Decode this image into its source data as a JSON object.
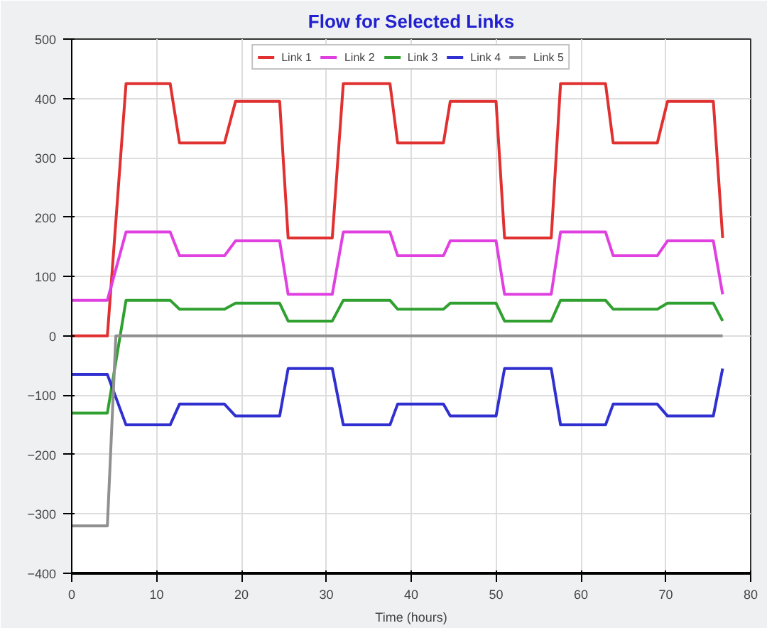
{
  "chart_data": {
    "type": "line",
    "title": "Flow for Selected Links",
    "xlabel": "Time (hours)",
    "x": [
      0,
      4.2,
      6.4,
      11.6,
      12.7,
      18,
      19.3,
      24.5,
      25.5,
      30.7,
      32,
      37.5,
      38.4,
      43.8,
      44.6,
      50,
      51,
      56.5,
      57.6,
      62.9,
      63.8,
      69,
      70.2,
      75.6,
      76.7
    ],
    "series": [
      {
        "name": "Link 1",
        "color": "#e03030",
        "values": [
          0,
          0,
          425,
          425,
          325,
          325,
          395,
          395,
          165,
          165,
          425,
          425,
          325,
          325,
          395,
          395,
          165,
          165,
          425,
          425,
          325,
          325,
          395,
          395,
          165
        ]
      },
      {
        "name": "Link 2",
        "color": "#e040e0",
        "values": [
          60,
          60,
          175,
          175,
          135,
          135,
          160,
          160,
          70,
          70,
          175,
          175,
          135,
          135,
          160,
          160,
          70,
          70,
          175,
          175,
          135,
          135,
          160,
          160,
          70
        ]
      },
      {
        "name": "Link 3",
        "color": "#30a030",
        "values": [
          -130,
          -130,
          60,
          60,
          45,
          45,
          55,
          55,
          25,
          25,
          60,
          60,
          45,
          45,
          55,
          55,
          25,
          25,
          60,
          60,
          45,
          45,
          55,
          55,
          25
        ]
      },
      {
        "name": "Link 4",
        "color": "#3030d0",
        "values": [
          -65,
          -65,
          -150,
          -150,
          -115,
          -115,
          -135,
          -135,
          -55,
          -55,
          -150,
          -150,
          -115,
          -115,
          -135,
          -135,
          -55,
          -55,
          -150,
          -150,
          -115,
          -115,
          -135,
          -135,
          -55
        ]
      },
      {
        "name": "Link 5",
        "color": "#909090",
        "x": [
          0,
          4.2,
          5.2,
          76.7
        ],
        "values": [
          -320,
          -320,
          0,
          0
        ]
      }
    ],
    "xlim": [
      0,
      80
    ],
    "xticks": [
      0,
      10,
      20,
      30,
      40,
      50,
      60,
      70,
      80
    ],
    "ylim": [
      -400,
      500
    ],
    "yticks": [
      -400,
      -300,
      -200,
      -100,
      0,
      100,
      200,
      300,
      400,
      500
    ],
    "grid": true,
    "legend": "top",
    "marker": "none",
    "line_style": "solid"
  }
}
